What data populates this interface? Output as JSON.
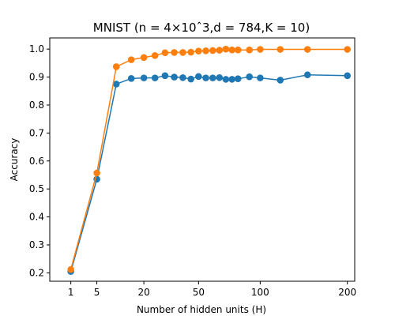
{
  "chart_data": {
    "type": "line",
    "title": "MNIST (n = 4×10ˆ3,d = 784,K = 10)",
    "xlabel": "Number of hidden units (H)",
    "ylabel": "Accuracy",
    "xscale": "sqrt",
    "xlim": [
      0,
      210
    ],
    "ylim": [
      0.17,
      1.04
    ],
    "grid": false,
    "x_ticks": [
      1,
      5,
      20,
      50,
      100,
      200
    ],
    "y_ticks": [
      0.2,
      0.3,
      0.4,
      0.5,
      0.6,
      0.7,
      0.8,
      0.9,
      1.0
    ],
    "x": [
      1,
      5,
      10,
      15,
      20,
      25,
      30,
      35,
      40,
      45,
      50,
      55,
      60,
      65,
      70,
      75,
      80,
      90,
      100,
      120,
      150,
      200
    ],
    "series": [
      {
        "color": "#1f77b4",
        "values": [
          0.205,
          0.535,
          0.875,
          0.895,
          0.897,
          0.897,
          0.905,
          0.9,
          0.898,
          0.893,
          0.902,
          0.897,
          0.897,
          0.898,
          0.892,
          0.892,
          0.894,
          0.901,
          0.897,
          0.889,
          0.908,
          0.905
        ]
      },
      {
        "color": "#ff7f0e",
        "values": [
          0.212,
          0.557,
          0.937,
          0.962,
          0.97,
          0.977,
          0.987,
          0.988,
          0.988,
          0.989,
          0.993,
          0.994,
          0.995,
          0.996,
          1.0,
          0.997,
          0.997,
          0.997,
          0.999,
          0.999,
          0.999,
          0.999
        ]
      }
    ]
  }
}
